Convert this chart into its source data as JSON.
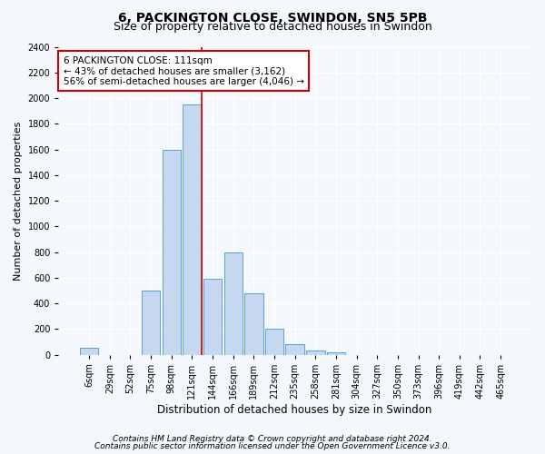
{
  "title1": "6, PACKINGTON CLOSE, SWINDON, SN5 5PB",
  "title2": "Size of property relative to detached houses in Swindon",
  "xlabel": "Distribution of detached houses by size in Swindon",
  "ylabel": "Number of detached properties",
  "categories": [
    "6sqm",
    "29sqm",
    "52sqm",
    "75sqm",
    "98sqm",
    "121sqm",
    "144sqm",
    "166sqm",
    "189sqm",
    "212sqm",
    "235sqm",
    "258sqm",
    "281sqm",
    "304sqm",
    "327sqm",
    "350sqm",
    "373sqm",
    "396sqm",
    "419sqm",
    "442sqm",
    "465sqm"
  ],
  "values": [
    50,
    0,
    0,
    500,
    1600,
    1950,
    590,
    800,
    480,
    200,
    80,
    30,
    20,
    0,
    0,
    0,
    0,
    0,
    0,
    0,
    0
  ],
  "bar_color": "#c5d8f0",
  "bar_edge_color": "#5a9fd4",
  "vline_x_index": 5,
  "vline_color": "#cc0000",
  "annotation_text": "6 PACKINGTON CLOSE: 111sqm\n← 43% of detached houses are smaller (3,162)\n56% of semi-detached houses are larger (4,046) →",
  "annotation_box_color": "#ffffff",
  "annotation_box_edge": "#cc0000",
  "ylim": [
    0,
    2400
  ],
  "yticks": [
    0,
    200,
    400,
    600,
    800,
    1000,
    1200,
    1400,
    1600,
    1800,
    2000,
    2200,
    2400
  ],
  "footnote1": "Contains HM Land Registry data © Crown copyright and database right 2024.",
  "footnote2": "Contains public sector information licensed under the Open Government Licence v3.0.",
  "bg_color": "#f4f7fb",
  "plot_bg_color": "#f4f7fb",
  "title1_fontsize": 10,
  "title2_fontsize": 9,
  "xlabel_fontsize": 8.5,
  "ylabel_fontsize": 8,
  "tick_fontsize": 7,
  "footnote_fontsize": 6.5,
  "annotation_fontsize": 7.5
}
